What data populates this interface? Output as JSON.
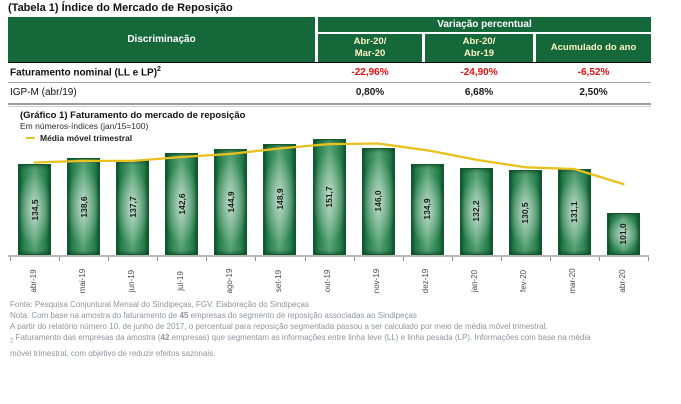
{
  "table": {
    "title": "(Tabela 1) Índice do Mercado de Reposição",
    "header": {
      "discrimination": "Discriminação",
      "group": "Variação percentual",
      "col1_line1": "Abr-20/",
      "col1_line2": "Mar-20",
      "col2_line1": "Abr-20/",
      "col2_line2": "Abr-19",
      "col3": "Acumulado do ano"
    },
    "rows": [
      {
        "label": "Faturamento nominal (LL e LP)",
        "label_sup": "2",
        "values": [
          "-22,96%",
          "-24,90%",
          "-6,52%"
        ],
        "value_color": "#e60f0f"
      },
      {
        "label": "IGP-M (abr/19)",
        "label_sup": "",
        "values": [
          "0,80%",
          "6,68%",
          "2,50%"
        ],
        "value_color": "#1a1a1a"
      }
    ],
    "header_green": "#15683A"
  },
  "chart": {
    "title": "(Gráfico 1) Faturamento do mercado de reposição",
    "subtitle": "Em números-índices (jan/15=100)",
    "legend": {
      "label": "Média móvel trimestral",
      "color": "#e9c11f"
    }
  },
  "chart_data": {
    "type": "bar",
    "title": "(Gráfico 1) Faturamento do mercado de reposição",
    "subtitle": "Em números-índices (jan/15=100)",
    "categories": [
      "abr-19",
      "mai-19",
      "jun-19",
      "jul-19",
      "ago-19",
      "set-19",
      "out-19",
      "nov-19",
      "dez-19",
      "jan-20",
      "fev-20",
      "mar-20",
      "abr-20"
    ],
    "series": [
      {
        "name": "Números-índices (jan/15=100)",
        "type": "bar",
        "values": [
          134.5,
          138.6,
          137.7,
          142.6,
          144.9,
          148.9,
          151.7,
          146.0,
          134.9,
          132.2,
          130.5,
          131.1,
          101.0
        ],
        "labels": [
          "134,5",
          "138,6",
          "137,7",
          "142,6",
          "144,9",
          "148,9",
          "151,7",
          "146,0",
          "134,9",
          "132,2",
          "130,5",
          "131,1",
          "101,0"
        ],
        "color": "#17693B"
      },
      {
        "name": "Média móvel trimestral",
        "type": "line",
        "values": [
          135.8,
          136.9,
          136.9,
          139.6,
          141.7,
          145.5,
          148.5,
          148.9,
          144.2,
          137.7,
          132.5,
          131.3,
          120.9
        ],
        "color": "#e9c11f"
      }
    ],
    "y_axis_visible": false,
    "grid": false,
    "legend_position": "top-left"
  },
  "footnotes": [
    {
      "segments": [
        {
          "text": "Fonte: Pesquisa Conjuntural Mensal do Sindipeças, FGV. Elaboração do Sindipeças",
          "bold": false
        }
      ]
    },
    {
      "segments": [
        {
          "text": "Nota: Com base na amostra do faturamento de ",
          "bold": false
        },
        {
          "text": "45",
          "bold": true
        },
        {
          "text": " empresas do segmento de reposição associadas ao Sindipeças",
          "bold": false
        }
      ]
    },
    {
      "segments": [
        {
          "text": "A partir do relatório número 10, de junho de 2017, o percentual para reposição segmentada passou a ser calculado por meio de média móvel trimestral.",
          "bold": false
        }
      ]
    },
    {
      "segments": [
        {
          "text": "2",
          "bold": false,
          "marker": true
        },
        {
          "text": " Faturamento das empresas da amostra (",
          "bold": false
        },
        {
          "text": "42",
          "bold": true
        },
        {
          "text": " empresas) que segmentam as informações entre linha leve (LL) e linha pesada (LP). Informações com base na média",
          "bold": false
        }
      ]
    },
    {
      "segments": [
        {
          "text": "móvel trimestral, com objetivo de reduzir efeitos sazonais.",
          "bold": false
        }
      ]
    }
  ]
}
